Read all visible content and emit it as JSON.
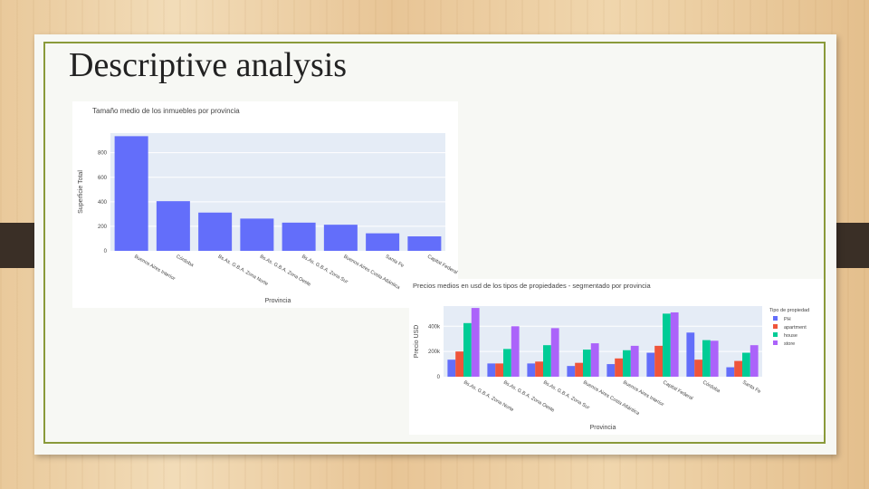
{
  "slide": {
    "title": "Descriptive analysis"
  },
  "chart_data": [
    {
      "type": "bar",
      "title": "Tamaño medio de los inmuebles por provincia",
      "xlabel": "Provincia",
      "ylabel": "Superficie Total",
      "ylim": [
        0,
        960
      ],
      "yticks": [
        0,
        200,
        400,
        600,
        800
      ],
      "categories": [
        "Buenos Aires Interior",
        "Córdoba",
        "Bs.As. G.B.A. Zona Norte",
        "Bs.As. G.B.A. Zona Oeste",
        "Bs.As. G.B.A. Zona Sur",
        "Buenos Aires Costa Atlántica",
        "Santa Fe",
        "Capital Federal"
      ],
      "values": [
        935,
        405,
        312,
        263,
        230,
        213,
        143,
        118
      ],
      "color": "#636efa",
      "grid": true
    },
    {
      "type": "bar",
      "title": "Precios medios en usd de los tipos de propiedades - segmentado por provincia",
      "xlabel": "Provincia",
      "ylabel": "Precio USD",
      "ylim": [
        0,
        560000
      ],
      "yticks": [
        0,
        200000,
        400000
      ],
      "ytick_labels": [
        "0",
        "200k",
        "400k"
      ],
      "legend_title": "Tipo de propiedad",
      "legend_position": "right",
      "categories": [
        "Bs.As. G.B.A. Zona Norte",
        "Bs.As. G.B.A. Zona Oeste",
        "Bs.As. G.B.A. Zona Sur",
        "Buenos Aires Costa Atlántica",
        "Buenos Aires Interior",
        "Capital Federal",
        "Córdoba",
        "Santa Fe"
      ],
      "series": [
        {
          "name": "PH",
          "color": "#636efa",
          "values": [
            135000,
            105000,
            105000,
            85000,
            100000,
            190000,
            350000,
            75000
          ]
        },
        {
          "name": "apartment",
          "color": "#ef553b",
          "values": [
            200000,
            105000,
            120000,
            110000,
            145000,
            245000,
            135000,
            125000
          ]
        },
        {
          "name": "house",
          "color": "#00cc96",
          "values": [
            425000,
            220000,
            250000,
            215000,
            210000,
            500000,
            290000,
            190000
          ]
        },
        {
          "name": "store",
          "color": "#ab63fa",
          "values": [
            545000,
            400000,
            385000,
            265000,
            245000,
            510000,
            285000,
            250000
          ]
        }
      ],
      "grid": true
    }
  ]
}
